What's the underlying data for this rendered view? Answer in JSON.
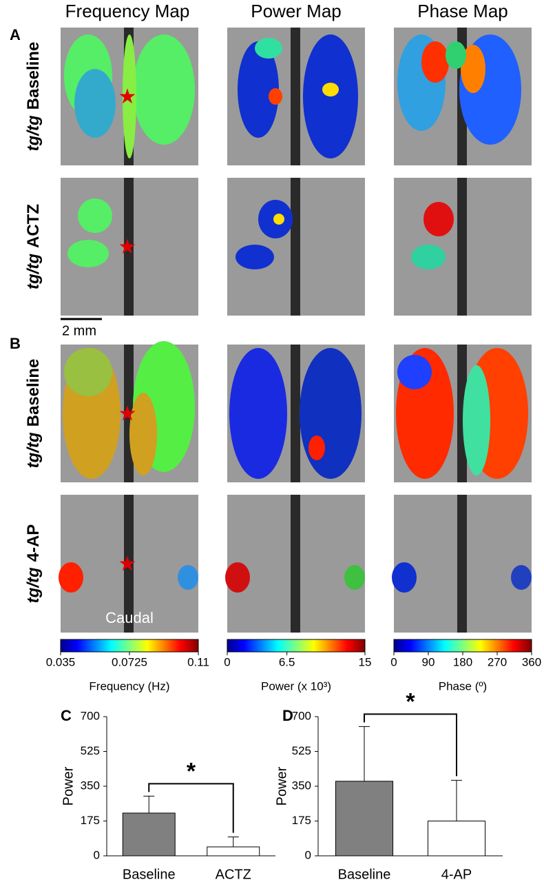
{
  "headers": [
    "Frequency Map",
    "Power Map",
    "Phase Map"
  ],
  "panel_labels": [
    "A",
    "B"
  ],
  "row_labels": [
    {
      "genotype": "tg/tg",
      "condition": "Baseline"
    },
    {
      "genotype": "tg/tg",
      "condition": "ACTZ"
    },
    {
      "genotype": "tg/tg",
      "condition": "Baseline"
    },
    {
      "genotype": "tg/tg",
      "condition": "4-AP"
    }
  ],
  "scale_bar": "2 mm",
  "annotation": "Caudal",
  "colorbars": [
    {
      "label": "Frequency (Hz)",
      "lim": [
        0.035,
        0.11
      ],
      "ticks": [
        0.035,
        0.0725,
        0.11
      ]
    },
    {
      "label": "Power (x 10³)",
      "lim": [
        0,
        15
      ],
      "ticks": [
        0,
        6.5,
        15
      ]
    },
    {
      "label": "Phase (º)",
      "lim": [
        0,
        360
      ],
      "ticks": [
        0,
        90,
        180,
        270,
        360
      ]
    }
  ],
  "chart_data": [
    {
      "type": "bar",
      "panel": "C",
      "ylabel": "Power",
      "categories": [
        "Baseline",
        "ACTZ"
      ],
      "values": [
        215,
        45
      ],
      "errors": [
        85,
        50
      ],
      "colors": [
        "#808080",
        "#ffffff"
      ],
      "ylim": [
        0,
        700
      ],
      "yticks": [
        0,
        175,
        350,
        525,
        700
      ],
      "significance": "*"
    },
    {
      "type": "bar",
      "panel": "D",
      "ylabel": "Power",
      "categories": [
        "Baseline",
        "4-AP"
      ],
      "values": [
        375,
        175
      ],
      "errors": [
        275,
        205
      ],
      "colors": [
        "#808080",
        "#ffffff"
      ],
      "ylim": [
        0,
        700
      ],
      "yticks": [
        0,
        175,
        350,
        525,
        700
      ],
      "significance": "*"
    }
  ]
}
